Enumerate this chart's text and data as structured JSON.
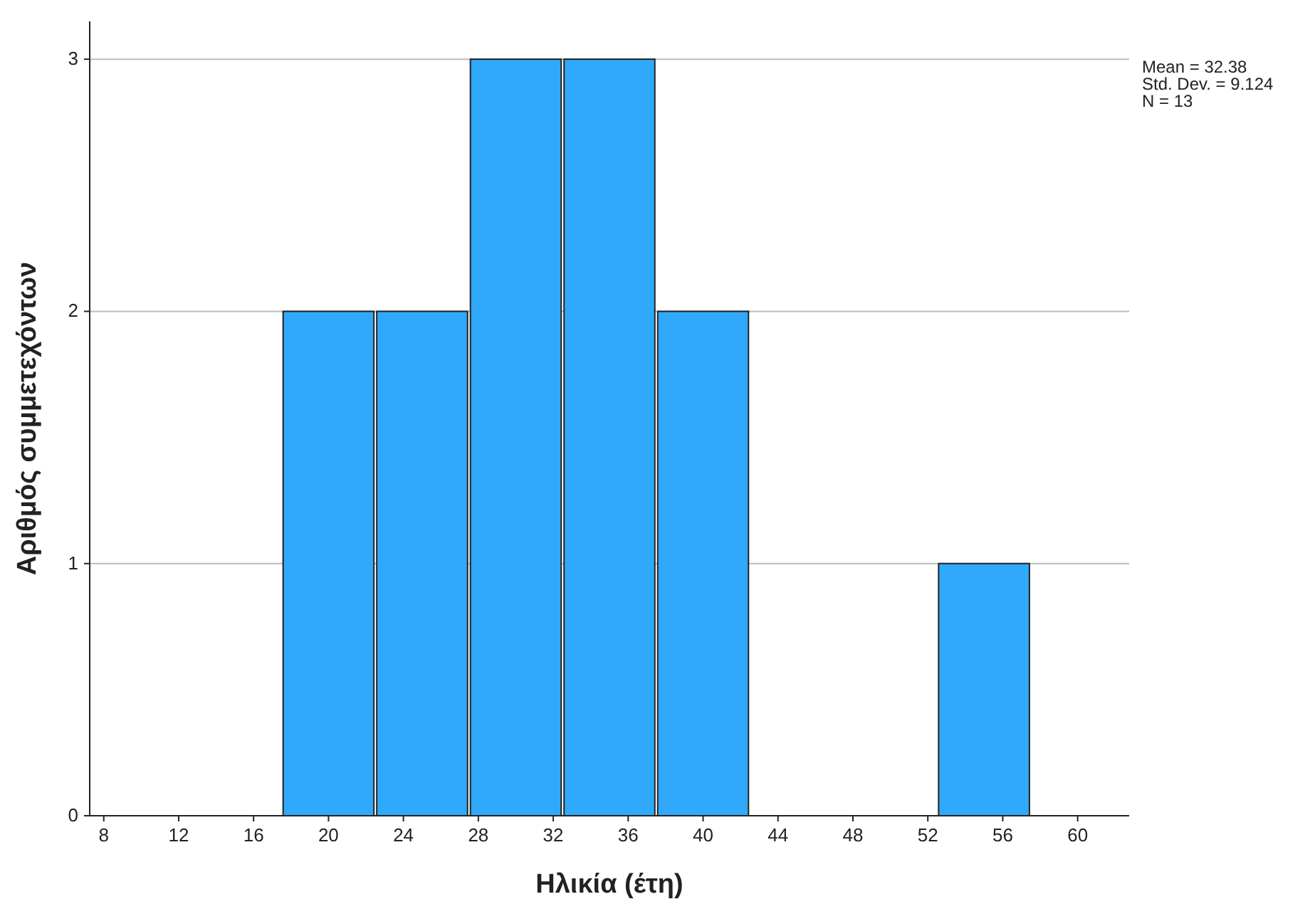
{
  "chart_data": {
    "type": "histogram",
    "xlabel": "Ηλικία (έτη)",
    "ylabel": "Αριθμός συμμετεχόντων",
    "bins": [
      17.5,
      22.5,
      27.5,
      32.5,
      37.5,
      42.5,
      47.5,
      52.5,
      57.5
    ],
    "values": [
      2,
      2,
      3,
      3,
      2,
      0,
      0,
      1
    ],
    "color": "#31a9fb",
    "xlim": [
      7.25,
      62.75
    ],
    "xticks": [
      8,
      12,
      16,
      20,
      24,
      28,
      32,
      36,
      40,
      44,
      48,
      52,
      56,
      60
    ],
    "ylim": [
      0,
      3.15
    ],
    "yticks": [
      0,
      1,
      2,
      3
    ],
    "grid": "y",
    "annotations": [
      "Mean = 32.38",
      "Std. Dev. = 9.124",
      "N = 13"
    ]
  }
}
